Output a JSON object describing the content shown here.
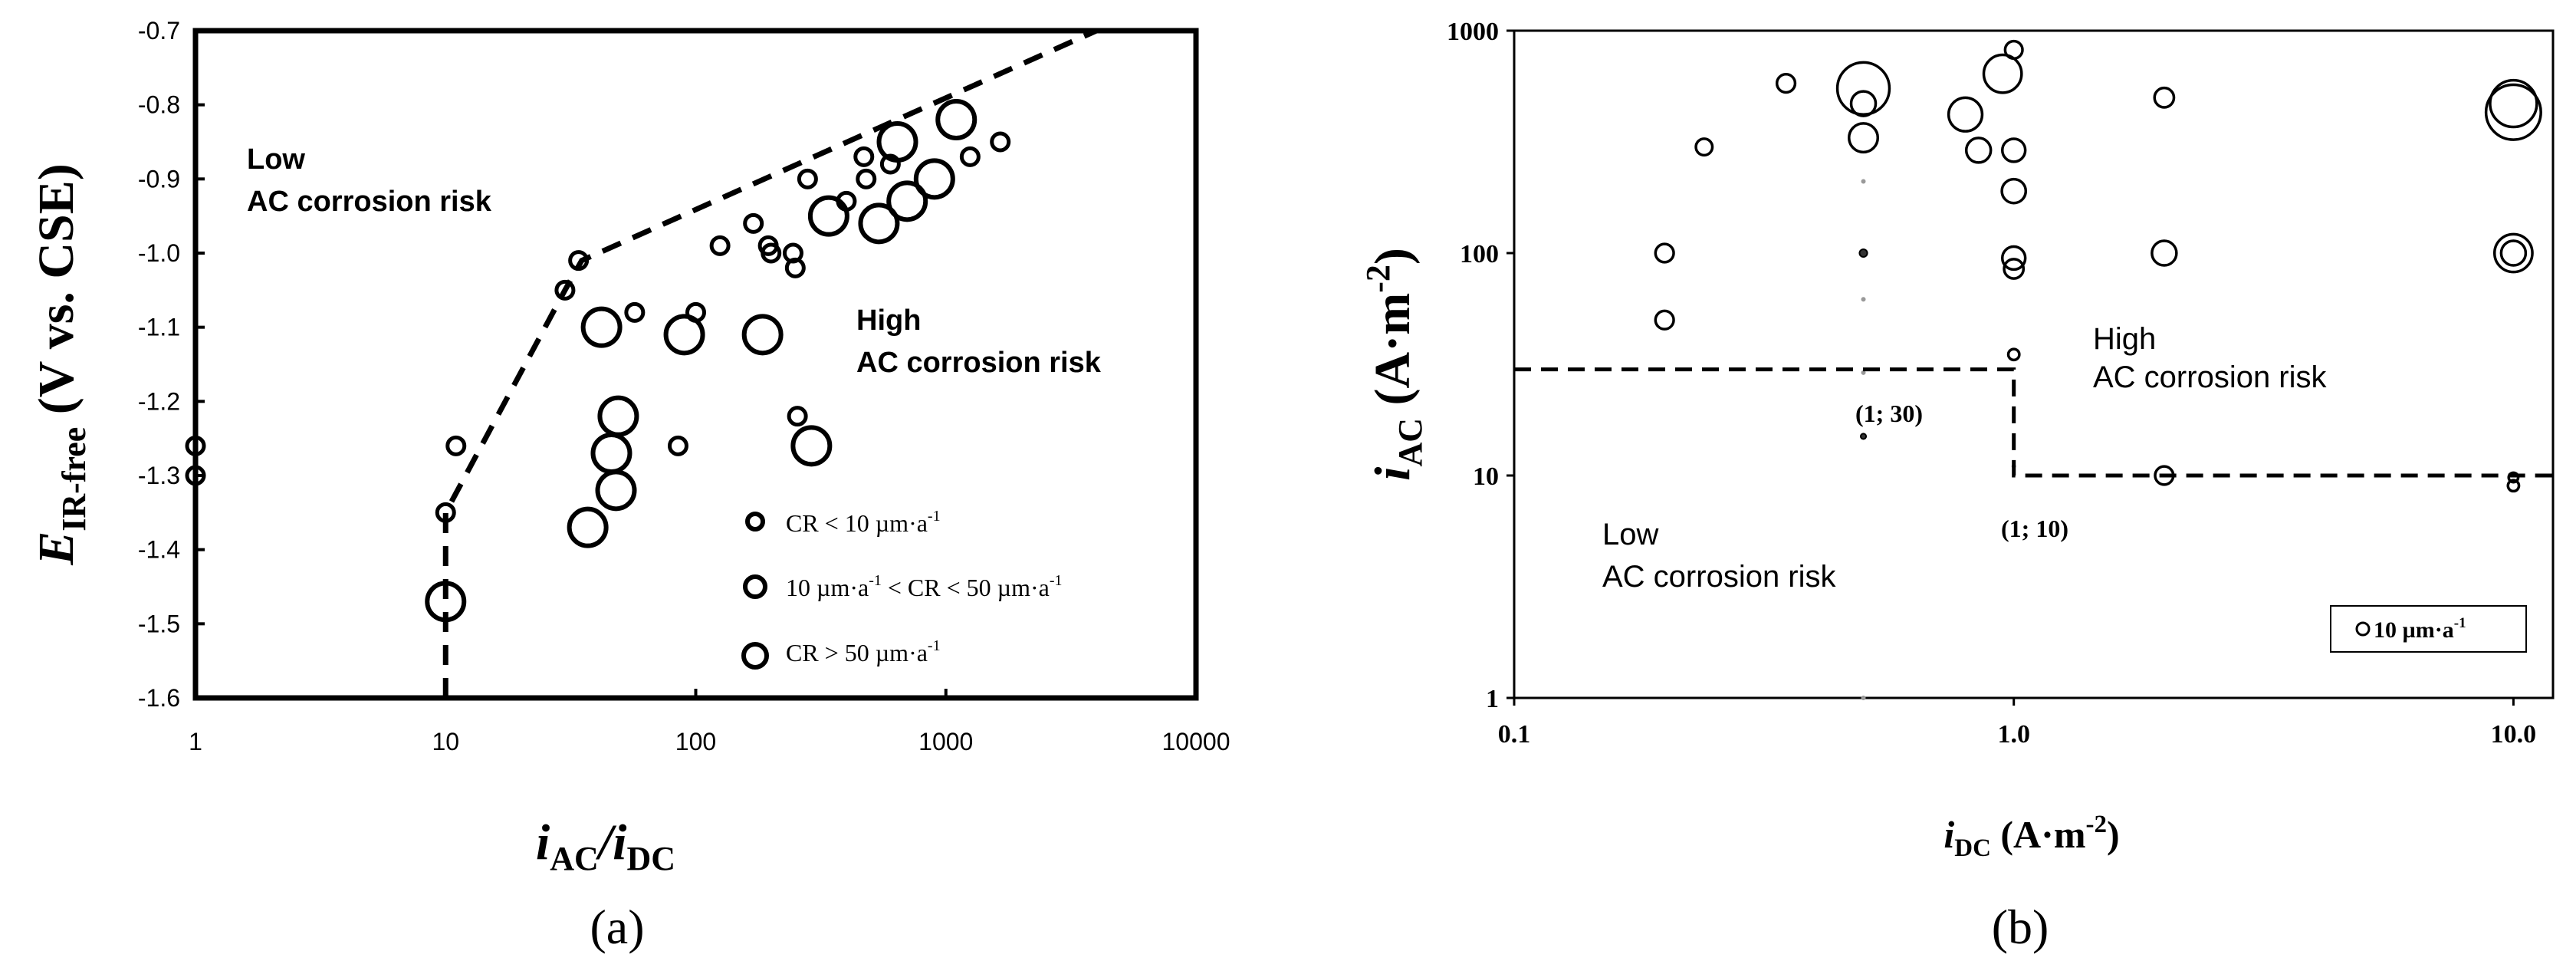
{
  "chart_data": [
    {
      "id": "a",
      "type": "scatter",
      "panel_label": "(a)",
      "xscale": "log",
      "xlim": [
        1,
        10000
      ],
      "ylim": [
        -1.6,
        -0.7
      ],
      "xticks": [
        "1",
        "10",
        "100",
        "1000",
        "10000"
      ],
      "yticks": [
        "-0.7",
        "-0.8",
        "-0.9",
        "-1.0",
        "-1.1",
        "-1.2",
        "-1.3",
        "-1.4",
        "-1.5",
        "-1.6"
      ],
      "xlabel": {
        "main": "i",
        "sub1": "AC",
        "slash": "/i",
        "sub2": "DC"
      },
      "ylabel": {
        "main": "E",
        "sub": "IR-free",
        "rest": " (V vs. CSE)"
      },
      "region_low": [
        "Low",
        "AC corrosion risk"
      ],
      "region_high": [
        "High",
        "AC corrosion risk"
      ],
      "boundary": [
        [
          10,
          -1.6
        ],
        [
          10,
          -1.35
        ],
        [
          30,
          -1.05
        ],
        [
          35,
          -1.01
        ],
        [
          4000,
          -0.7
        ]
      ],
      "legend": [
        {
          "label": "CR < 10 µm·a",
          "sup": "-1",
          "class": "small"
        },
        {
          "label": "10 µm·a",
          "sup": "-1",
          "label2": " < CR < 50 µm·a",
          "sup2": "-1",
          "class": "medium"
        },
        {
          "label": "CR > 50 µm·a",
          "sup": "-1",
          "class": "large"
        }
      ],
      "points": [
        {
          "x": 1,
          "y": -1.26,
          "class": "small"
        },
        {
          "x": 1,
          "y": -1.3,
          "class": "small"
        },
        {
          "x": 10,
          "y": -1.35,
          "class": "small"
        },
        {
          "x": 10,
          "y": -1.47,
          "class": "large"
        },
        {
          "x": 11,
          "y": -1.26,
          "class": "small"
        },
        {
          "x": 30,
          "y": -1.05,
          "class": "small"
        },
        {
          "x": 34,
          "y": -1.01,
          "class": "small"
        },
        {
          "x": 37,
          "y": -1.37,
          "class": "large"
        },
        {
          "x": 42,
          "y": -1.1,
          "class": "large"
        },
        {
          "x": 46,
          "y": -1.27,
          "class": "large"
        },
        {
          "x": 48,
          "y": -1.32,
          "class": "large"
        },
        {
          "x": 49,
          "y": -1.22,
          "class": "large"
        },
        {
          "x": 57,
          "y": -1.08,
          "class": "small"
        },
        {
          "x": 85,
          "y": -1.26,
          "class": "small"
        },
        {
          "x": 90,
          "y": -1.11,
          "class": "large"
        },
        {
          "x": 100,
          "y": -1.08,
          "class": "small"
        },
        {
          "x": 125,
          "y": -0.99,
          "class": "small"
        },
        {
          "x": 170,
          "y": -0.96,
          "class": "small"
        },
        {
          "x": 185,
          "y": -1.11,
          "class": "large"
        },
        {
          "x": 195,
          "y": -0.99,
          "class": "small"
        },
        {
          "x": 200,
          "y": -1.0,
          "class": "small"
        },
        {
          "x": 245,
          "y": -1.0,
          "class": "small"
        },
        {
          "x": 250,
          "y": -1.02,
          "class": "small"
        },
        {
          "x": 255,
          "y": -1.22,
          "class": "small"
        },
        {
          "x": 280,
          "y": -0.9,
          "class": "small"
        },
        {
          "x": 290,
          "y": -1.26,
          "class": "large"
        },
        {
          "x": 340,
          "y": -0.95,
          "class": "large"
        },
        {
          "x": 400,
          "y": -0.93,
          "class": "small"
        },
        {
          "x": 470,
          "y": -0.87,
          "class": "small"
        },
        {
          "x": 480,
          "y": -0.9,
          "class": "small"
        },
        {
          "x": 540,
          "y": -0.96,
          "class": "large"
        },
        {
          "x": 600,
          "y": -0.88,
          "class": "small"
        },
        {
          "x": 640,
          "y": -0.85,
          "class": "large"
        },
        {
          "x": 700,
          "y": -0.93,
          "class": "large"
        },
        {
          "x": 900,
          "y": -0.9,
          "class": "large"
        },
        {
          "x": 1100,
          "y": -0.82,
          "class": "large"
        },
        {
          "x": 1250,
          "y": -0.87,
          "class": "small"
        },
        {
          "x": 1650,
          "y": -0.85,
          "class": "small"
        }
      ]
    },
    {
      "id": "b",
      "type": "scatter",
      "panel_label": "(b)",
      "xscale": "log",
      "yscale": "log",
      "xlim": [
        0.1,
        12
      ],
      "ylim": [
        1,
        1000
      ],
      "xticks": [
        "0.1",
        "1.0",
        "10.0"
      ],
      "yticks": [
        "1",
        "10",
        "100",
        "1000"
      ],
      "xlabel": {
        "main": "i",
        "sub": "DC",
        "rest": " (A·m",
        "sup": "-2",
        "close": ")"
      },
      "ylabel": {
        "main": "i",
        "sub": "AC",
        "rest": " (A·m",
        "sup": "-2",
        "close": ")"
      },
      "region_low": [
        "Low",
        "AC corrosion risk"
      ],
      "region_high": [
        "High",
        "AC corrosion risk"
      ],
      "threshold_label_1": "(1; 30)",
      "threshold_label_2": "(1; 10)",
      "boundary": [
        [
          0.1,
          30
        ],
        [
          1,
          30
        ],
        [
          1,
          10
        ],
        [
          12,
          10
        ]
      ],
      "legend": {
        "label": "10 µm·a",
        "sup": "-1"
      },
      "points": [
        {
          "x": 0.2,
          "y": 100,
          "cr": 22
        },
        {
          "x": 0.2,
          "y": 50,
          "cr": 22
        },
        {
          "x": 0.24,
          "y": 300,
          "cr": 18
        },
        {
          "x": 0.35,
          "y": 580,
          "cr": 22
        },
        {
          "x": 0.5,
          "y": 550,
          "cr": 180
        },
        {
          "x": 0.5,
          "y": 470,
          "cr": 40
        },
        {
          "x": 0.5,
          "y": 330,
          "cr": 55
        },
        {
          "x": 0.5,
          "y": 100,
          "cr": 4
        },
        {
          "x": 0.5,
          "y": 15,
          "cr": 2
        },
        {
          "x": 0.8,
          "y": 420,
          "cr": 75
        },
        {
          "x": 0.85,
          "y": 290,
          "cr": 40
        },
        {
          "x": 0.95,
          "y": 640,
          "cr": 95
        },
        {
          "x": 1.0,
          "y": 820,
          "cr": 20
        },
        {
          "x": 1.0,
          "y": 290,
          "cr": 35
        },
        {
          "x": 1.0,
          "y": 190,
          "cr": 38
        },
        {
          "x": 1.0,
          "y": 95,
          "cr": 35
        },
        {
          "x": 1.0,
          "y": 85,
          "cr": 25
        },
        {
          "x": 1.0,
          "y": 35,
          "cr": 8
        },
        {
          "x": 2.0,
          "y": 500,
          "cr": 25
        },
        {
          "x": 2.0,
          "y": 100,
          "cr": 40
        },
        {
          "x": 2.0,
          "y": 10,
          "cr": 22
        },
        {
          "x": 10.0,
          "y": 430,
          "cr": 200
        },
        {
          "x": 10.0,
          "y": 470,
          "cr": 145
        },
        {
          "x": 10.0,
          "y": 100,
          "cr": 95
        },
        {
          "x": 10.0,
          "y": 100,
          "cr": 40
        },
        {
          "x": 10.0,
          "y": 9,
          "cr": 8
        },
        {
          "x": 10.0,
          "y": 9.8,
          "cr": 6
        }
      ],
      "faint_points": [
        {
          "x": 0.5,
          "y": 210
        },
        {
          "x": 0.5,
          "y": 62
        },
        {
          "x": 0.5,
          "y": 29
        },
        {
          "x": 1.0,
          "y": 11
        },
        {
          "x": 0.5,
          "y": 1
        }
      ]
    }
  ]
}
